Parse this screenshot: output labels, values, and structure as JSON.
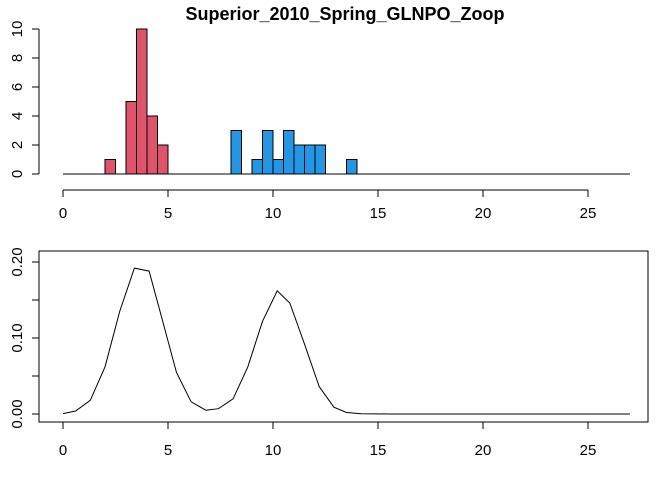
{
  "chart_data": [
    {
      "type": "bar",
      "title": "Superior_2010_Spring_GLNPO_Zoop",
      "xlabel": "",
      "ylabel": "",
      "xlim": [
        0,
        27
      ],
      "ylim": [
        0,
        10
      ],
      "x_ticks": [
        0,
        5,
        10,
        15,
        20,
        25
      ],
      "y_ticks": [
        0,
        2,
        4,
        6,
        8,
        10
      ],
      "bin_width": 0.5,
      "series": [
        {
          "color": "#DF536B",
          "bins": [
            {
              "x0": 2.0,
              "count": 1
            },
            {
              "x0": 3.0,
              "count": 5
            },
            {
              "x0": 3.5,
              "count": 10
            },
            {
              "x0": 4.0,
              "count": 4
            },
            {
              "x0": 4.5,
              "count": 2
            }
          ]
        },
        {
          "color": "#2297E6",
          "bins": [
            {
              "x0": 8.0,
              "count": 3
            },
            {
              "x0": 9.0,
              "count": 1
            },
            {
              "x0": 9.5,
              "count": 3
            },
            {
              "x0": 10.0,
              "count": 1
            },
            {
              "x0": 10.5,
              "count": 3
            },
            {
              "x0": 11.0,
              "count": 2
            },
            {
              "x0": 11.5,
              "count": 2
            },
            {
              "x0": 12.0,
              "count": 2
            },
            {
              "x0": 13.5,
              "count": 1
            }
          ]
        }
      ]
    },
    {
      "type": "line",
      "title": "",
      "xlabel": "",
      "ylabel": "",
      "xlim": [
        0,
        27
      ],
      "ylim": [
        0,
        0.2
      ],
      "x_ticks": [
        0,
        5,
        10,
        15,
        20,
        25
      ],
      "y_ticks": [
        0.0,
        0.05,
        0.1,
        0.15,
        0.2
      ],
      "y_tick_labels": [
        "0.00",
        "",
        "0.10",
        "",
        "0.20"
      ],
      "x": [
        0,
        0.6,
        1.3,
        2.0,
        2.7,
        3.4,
        4.1,
        4.7,
        5.4,
        6.1,
        6.8,
        7.4,
        8.1,
        8.8,
        9.5,
        10.2,
        10.8,
        11.5,
        12.2,
        12.9,
        13.5,
        14.2,
        14.9,
        15.6,
        16.3,
        17,
        27
      ],
      "y": [
        0.0005,
        0.004,
        0.018,
        0.062,
        0.135,
        0.192,
        0.188,
        0.127,
        0.055,
        0.016,
        0.005,
        0.007,
        0.02,
        0.062,
        0.122,
        0.162,
        0.146,
        0.092,
        0.036,
        0.009,
        0.002,
        0.0003,
        0.0001,
        0,
        0,
        0,
        0
      ]
    }
  ]
}
